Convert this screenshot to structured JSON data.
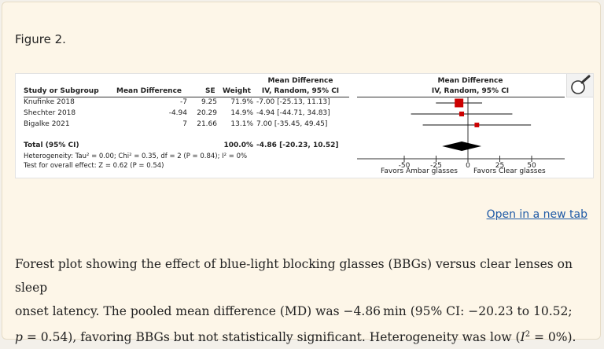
{
  "figure_title": "Figure 2.",
  "open_link": "Open in a new tab",
  "caption": {
    "line1": "Forest plot showing the effect of blue-light blocking glasses (BBGs) versus clear lenses on sleep",
    "line2": "onset latency. The pooled mean difference (MD) was −4.86 min (95% CI: −20.23 to 10.52;",
    "line3_p": "p",
    "line3_a": " = 0.54), favoring BBGs but not statistically significant. Heterogeneity was low (",
    "line3_i": "I",
    "line3_sup": "2",
    "line3_b": " = 0%)."
  },
  "table": {
    "headers": {
      "study": "Study or Subgroup",
      "md": "Mean Difference",
      "se": "SE",
      "weight": "Weight",
      "ci_top": "Mean Difference",
      "ci_bottom": "IV, Random, 95% CI",
      "plot_top": "Mean Difference",
      "plot_bottom": "IV, Random, 95% CI"
    },
    "rows": [
      {
        "study": "Knufinke 2018",
        "md": "-7",
        "se": "9.25",
        "weight": "71.9%",
        "ci": "-7.00 [-25.13, 11.13]"
      },
      {
        "study": "Shechter 2018",
        "md": "-4.94",
        "se": "20.29",
        "weight": "14.9%",
        "ci": "-4.94 [-44.71, 34.83]"
      },
      {
        "study": "Bigalke 2021",
        "md": "7",
        "se": "21.66",
        "weight": "13.1%",
        "ci": "7.00 [-35.45, 49.45]"
      }
    ],
    "total": {
      "label": "Total (95% CI)",
      "weight": "100.0%",
      "ci": "-4.86 [-20.23, 10.52]"
    },
    "heterogeneity": "Heterogeneity: Tau² = 0.00; Chi² = 0.35, df = 2 (P = 0.84); I² = 0%",
    "overall_effect": "Test for overall effect: Z = 0.62 (P = 0.54)",
    "favors_left": "Favors Ambar glasses",
    "favors_right": "Favors Clear glasses"
  },
  "chart_data": {
    "type": "scatter",
    "subtype": "forest-plot",
    "x_label_top": "Mean Difference",
    "x_label_bottom": "IV, Random, 95% CI",
    "xlim": [
      -50,
      50
    ],
    "ticks": [
      -50,
      -25,
      0,
      25,
      50
    ],
    "tick_labels": [
      "-50",
      "-25",
      "0",
      "25",
      "50"
    ],
    "studies": [
      {
        "name": "Knufinke 2018",
        "estimate": -7.0,
        "lower": -25.13,
        "upper": 11.13,
        "weight": 71.9
      },
      {
        "name": "Shechter 2018",
        "estimate": -4.94,
        "lower": -44.71,
        "upper": 34.83,
        "weight": 14.9
      },
      {
        "name": "Bigalke 2021",
        "estimate": 7.0,
        "lower": -35.45,
        "upper": 49.45,
        "weight": 13.1
      }
    ],
    "pooled": {
      "estimate": -4.86,
      "lower": -20.23,
      "upper": 10.52
    },
    "colors": {
      "study_marker": "#cc0000",
      "pooled": "#000000"
    }
  }
}
